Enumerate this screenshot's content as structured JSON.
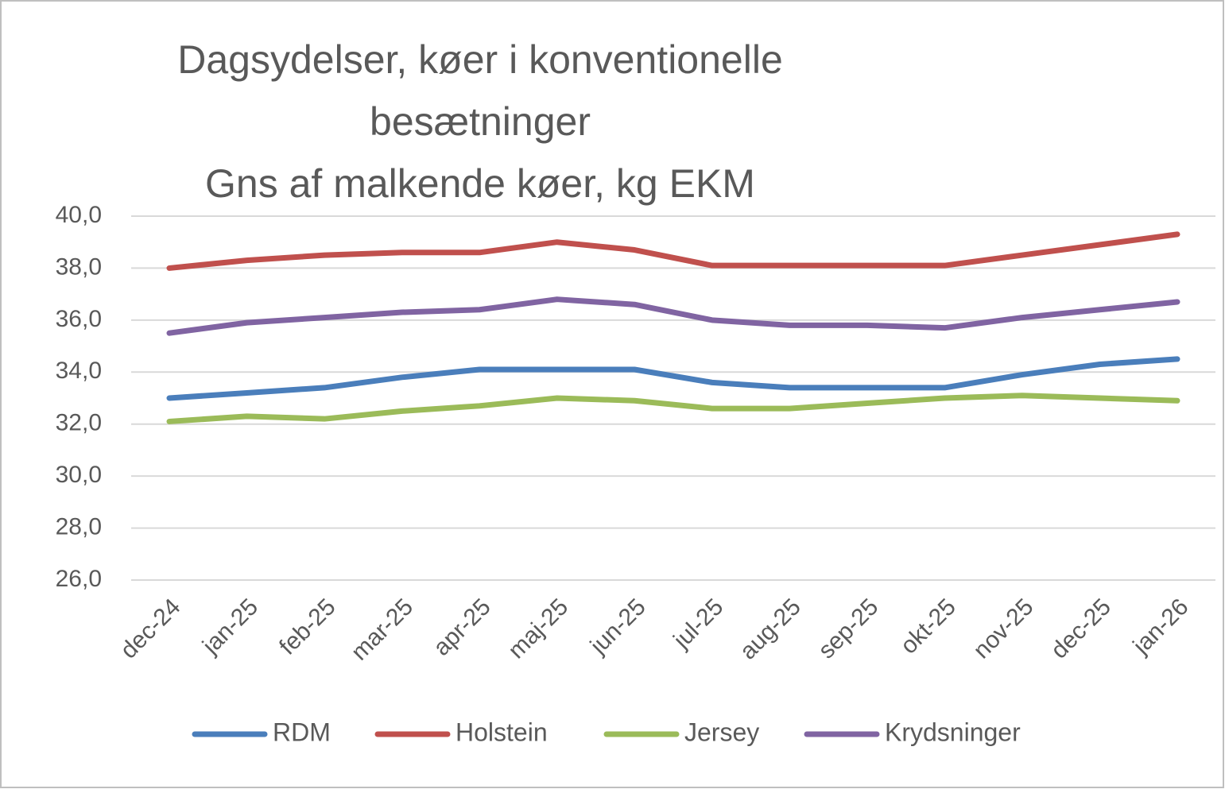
{
  "chart_data": {
    "type": "line",
    "title": [
      "Dagsydelser, køer i konventionelle",
      "besætninger",
      "Gns af malkende køer, kg EKM"
    ],
    "categories": [
      "dec-24",
      "jan-25",
      "feb-25",
      "mar-25",
      "apr-25",
      "maj-25",
      "jun-25",
      "jul-25",
      "aug-25",
      "sep-25",
      "okt-25",
      "nov-25",
      "dec-25",
      "jan-26"
    ],
    "series": [
      {
        "name": "RDM",
        "color": "#4a7ebb",
        "values": [
          33.0,
          33.2,
          33.4,
          33.8,
          34.1,
          34.1,
          34.1,
          33.6,
          33.4,
          33.4,
          33.4,
          33.9,
          34.3,
          34.5
        ]
      },
      {
        "name": "Holstein",
        "color": "#c0504d",
        "values": [
          38.0,
          38.3,
          38.5,
          38.6,
          38.6,
          39.0,
          38.7,
          38.1,
          38.1,
          38.1,
          38.1,
          38.5,
          38.9,
          39.3
        ]
      },
      {
        "name": "Jersey",
        "color": "#9bbb59",
        "values": [
          32.1,
          32.3,
          32.2,
          32.5,
          32.7,
          33.0,
          32.9,
          32.6,
          32.6,
          32.8,
          33.0,
          33.1,
          33.0,
          32.9
        ]
      },
      {
        "name": "Krydsninger",
        "color": "#8064a2",
        "values": [
          35.5,
          35.9,
          36.1,
          36.3,
          36.4,
          36.8,
          36.6,
          36.0,
          35.8,
          35.8,
          35.7,
          36.1,
          36.4,
          36.7
        ]
      }
    ],
    "ylim": [
      26,
      40
    ],
    "yticks": [
      {
        "value": 26,
        "label": "26,0"
      },
      {
        "value": 28,
        "label": "28,0"
      },
      {
        "value": 30,
        "label": "30,0"
      },
      {
        "value": 32,
        "label": "32,0"
      },
      {
        "value": 34,
        "label": "34,0"
      },
      {
        "value": 36,
        "label": "36,0"
      },
      {
        "value": 38,
        "label": "38,0"
      },
      {
        "value": 40,
        "label": "40,0"
      }
    ],
    "grid": true,
    "legend": "bottom"
  }
}
